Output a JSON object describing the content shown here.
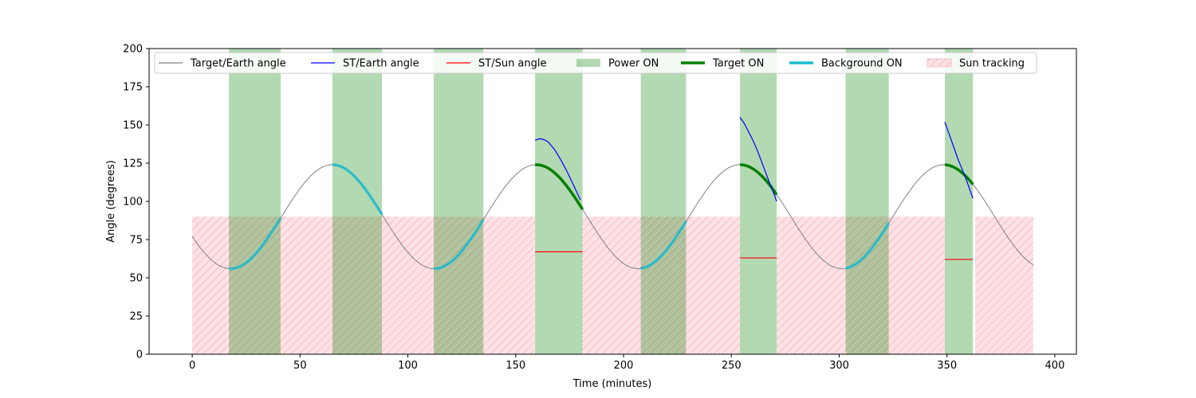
{
  "chart_data": {
    "type": "line",
    "title": "",
    "xlabel": "Time (minutes)",
    "ylabel": "Angle (degrees)",
    "xlim": [
      -20,
      410
    ],
    "ylim": [
      0,
      200
    ],
    "xticks": [
      0,
      50,
      100,
      150,
      200,
      250,
      300,
      350,
      400
    ],
    "yticks": [
      0,
      25,
      50,
      75,
      100,
      125,
      150,
      175,
      200
    ],
    "grid": false,
    "legend_position": "top",
    "legend": [
      {
        "name": "Target/Earth angle",
        "kind": "line",
        "color": "#808080"
      },
      {
        "name": "ST/Earth angle",
        "kind": "line",
        "color": "#0000ff"
      },
      {
        "name": "ST/Sun angle",
        "kind": "line",
        "color": "#ff0000"
      },
      {
        "name": "Power ON",
        "kind": "patch",
        "color": "#008000"
      },
      {
        "name": "Target ON",
        "kind": "thickline",
        "color": "#008000"
      },
      {
        "name": "Background ON",
        "kind": "thickline",
        "color": "#17becf"
      },
      {
        "name": "Sun tracking",
        "kind": "hatch",
        "color": "#ffb6c1"
      }
    ],
    "target_earth_angle": {
      "model": "sinusoid",
      "mean": 90,
      "amplitude": 34,
      "period": 94.5,
      "peak_times": [
        65,
        159.5,
        254,
        348.5
      ],
      "x_range": [
        0,
        390
      ]
    },
    "power_on_intervals": [
      [
        17,
        41
      ],
      [
        65,
        88
      ],
      [
        112,
        135
      ],
      [
        159,
        181
      ],
      [
        208,
        229
      ],
      [
        254,
        271
      ],
      [
        303,
        323
      ],
      [
        349,
        362
      ]
    ],
    "sun_tracking_intervals": [
      [
        0,
        159
      ],
      [
        181,
        254
      ],
      [
        271,
        349
      ],
      [
        363,
        390
      ]
    ],
    "sun_tracking_level": 90,
    "background_on_intervals": [
      [
        17,
        41
      ],
      [
        65,
        88
      ],
      [
        112,
        135
      ],
      [
        208,
        229
      ],
      [
        303,
        323
      ]
    ],
    "target_on_intervals": [
      [
        159,
        181
      ],
      [
        254,
        271
      ],
      [
        349,
        362
      ]
    ],
    "st_earth_angle_series": [
      {
        "x": [
          159,
          161,
          163,
          165,
          168,
          171,
          174,
          177,
          180
        ],
        "y": [
          140,
          141,
          140.5,
          139,
          134,
          127,
          119,
          110,
          101
        ]
      },
      {
        "x": [
          254,
          256,
          258,
          260,
          262,
          264,
          266,
          268,
          270,
          271
        ],
        "y": [
          155,
          151,
          145.5,
          140,
          133.5,
          126,
          118.5,
          111,
          104,
          100
        ]
      },
      {
        "x": [
          349,
          351,
          353,
          355,
          357,
          359,
          361,
          362
        ],
        "y": [
          152,
          144,
          136,
          128,
          121,
          114,
          106,
          102
        ]
      }
    ],
    "st_sun_angle_segments": [
      {
        "x": [
          159,
          181
        ],
        "y": 67
      },
      {
        "x": [
          254,
          271
        ],
        "y": 63
      },
      {
        "x": [
          349,
          362
        ],
        "y": 62
      }
    ]
  }
}
